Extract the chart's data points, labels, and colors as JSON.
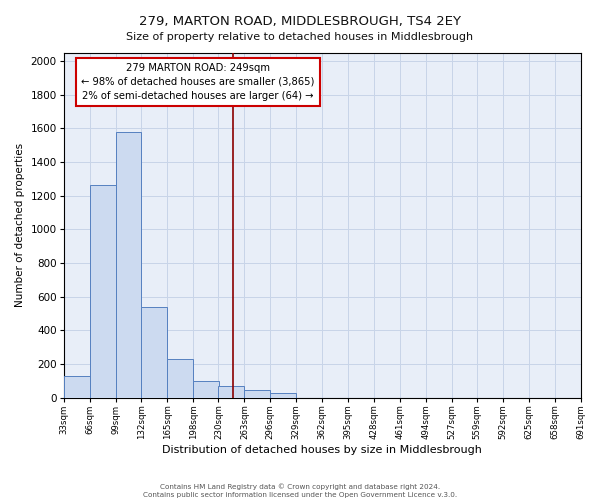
{
  "title": "279, MARTON ROAD, MIDDLESBROUGH, TS4 2EY",
  "subtitle": "Size of property relative to detached houses in Middlesbrough",
  "xlabel": "Distribution of detached houses by size in Middlesbrough",
  "ylabel": "Number of detached properties",
  "bin_edges": [
    33,
    66,
    99,
    132,
    165,
    198,
    230,
    263,
    296,
    329,
    362,
    395,
    428,
    461,
    494,
    527,
    559,
    592,
    625,
    658,
    691
  ],
  "bar_heights": [
    130,
    1265,
    1580,
    540,
    230,
    100,
    70,
    45,
    30,
    0,
    0,
    0,
    0,
    0,
    0,
    0,
    0,
    0,
    0,
    0
  ],
  "bar_color": "#ccdaf0",
  "bar_edge_color": "#5580c0",
  "grid_color": "#c8d4e8",
  "background_color": "#e8eef8",
  "vline_x": 249,
  "vline_color": "#8b0000",
  "annotation_text": "279 MARTON ROAD: 249sqm\n← 98% of detached houses are smaller (3,865)\n2% of semi-detached houses are larger (64) →",
  "annotation_box_color": "#ffffff",
  "annotation_box_edge_color": "#cc0000",
  "ylim": [
    0,
    2050
  ],
  "yticks": [
    0,
    200,
    400,
    600,
    800,
    1000,
    1200,
    1400,
    1600,
    1800,
    2000
  ],
  "tick_labels": [
    "33sqm",
    "66sqm",
    "99sqm",
    "132sqm",
    "165sqm",
    "198sqm",
    "230sqm",
    "263sqm",
    "296sqm",
    "329sqm",
    "362sqm",
    "395sqm",
    "428sqm",
    "461sqm",
    "494sqm",
    "527sqm",
    "559sqm",
    "592sqm",
    "625sqm",
    "658sqm",
    "691sqm"
  ],
  "footer1": "Contains HM Land Registry data © Crown copyright and database right 2024.",
  "footer2": "Contains public sector information licensed under the Open Government Licence v.3.0."
}
